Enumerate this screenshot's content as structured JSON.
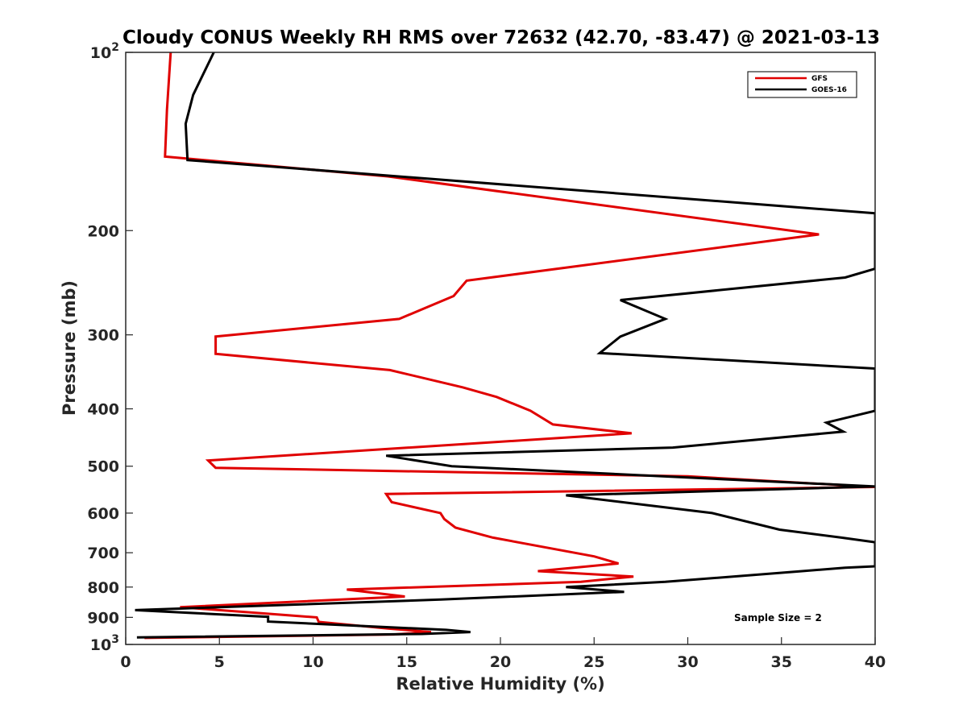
{
  "chart_data": {
    "type": "line",
    "title": "Cloudy CONUS Weekly RH RMS over 72632 (42.70, -83.47) @ 2021-03-13",
    "xlabel": "Relative Humidity (%)",
    "ylabel": "Pressure (mb)",
    "xlim": [
      0,
      40
    ],
    "ylim": [
      100,
      1000
    ],
    "yscale": "log",
    "y_reversed": true,
    "x_ticks": [
      "0",
      "5",
      "10",
      "15",
      "20",
      "25",
      "30",
      "35",
      "40"
    ],
    "y_ticks": [
      {
        "value": 100,
        "base": "10",
        "exp": "2"
      },
      {
        "value": 200,
        "label": "200"
      },
      {
        "value": 300,
        "label": "300"
      },
      {
        "value": 400,
        "label": "400"
      },
      {
        "value": 500,
        "label": "500"
      },
      {
        "value": 600,
        "label": "600"
      },
      {
        "value": 700,
        "label": "700"
      },
      {
        "value": 800,
        "label": "800"
      },
      {
        "value": 900,
        "label": "900"
      },
      {
        "value": 1000,
        "base": "10",
        "exp": "3"
      }
    ],
    "legend_position": "top-right",
    "grid": false,
    "annotation": "Sample Size = 2",
    "series": [
      {
        "name": "GFS",
        "color": "#e00000",
        "points": [
          [
            2.4,
            100
          ],
          [
            2.2,
            125
          ],
          [
            2.1,
            150
          ],
          [
            14,
            162
          ],
          [
            37,
            203
          ],
          [
            18.2,
            243
          ],
          [
            17.5,
            258
          ],
          [
            14.6,
            282
          ],
          [
            4.8,
            302
          ],
          [
            4.8,
            323
          ],
          [
            14.1,
            344
          ],
          [
            18,
            368
          ],
          [
            19.8,
            382
          ],
          [
            21.6,
            403
          ],
          [
            22.8,
            425
          ],
          [
            27,
            440
          ],
          [
            4.4,
            489
          ],
          [
            4.8,
            503
          ],
          [
            30,
            520
          ],
          [
            40,
            542
          ],
          [
            13.9,
            557
          ],
          [
            14.2,
            575
          ],
          [
            16.8,
            600
          ],
          [
            17,
            614
          ],
          [
            17.6,
            635
          ],
          [
            19.6,
            660
          ],
          [
            25,
            710
          ],
          [
            26.3,
            730
          ],
          [
            22,
            752
          ],
          [
            27.1,
            768
          ],
          [
            24.3,
            784
          ],
          [
            11.8,
            808
          ],
          [
            14.9,
            830
          ],
          [
            2.9,
            865
          ],
          [
            10.2,
            900
          ],
          [
            10.3,
            916
          ],
          [
            14,
            940
          ],
          [
            16.3,
            953
          ],
          [
            14.3,
            962
          ],
          [
            1,
            975
          ]
        ]
      },
      {
        "name": "GOES-16",
        "color": "#000000",
        "points": [
          [
            4.7,
            100
          ],
          [
            3.6,
            118
          ],
          [
            3.2,
            132
          ],
          [
            3.3,
            152
          ],
          [
            40,
            187
          ],
          [
            40,
            232
          ],
          [
            38.4,
            240
          ],
          [
            26.4,
            262
          ],
          [
            28.8,
            282
          ],
          [
            26.4,
            302
          ],
          [
            25.3,
            322
          ],
          [
            40,
            342
          ],
          [
            40,
            403
          ],
          [
            37.4,
            422
          ],
          [
            38.3,
            437
          ],
          [
            29.2,
            465
          ],
          [
            13.9,
            480
          ],
          [
            17.4,
            500
          ],
          [
            40,
            541
          ],
          [
            23.5,
            560
          ],
          [
            31.3,
            600
          ],
          [
            34.9,
            640
          ],
          [
            38.2,
            660
          ],
          [
            40,
            672
          ],
          [
            40,
            738
          ],
          [
            38.4,
            742
          ],
          [
            35.9,
            753
          ],
          [
            28.8,
            784
          ],
          [
            23.5,
            800
          ],
          [
            26.6,
            815
          ],
          [
            16.8,
            840
          ],
          [
            0.5,
            875
          ],
          [
            7.6,
            898
          ],
          [
            7.6,
            915
          ],
          [
            17.1,
            945
          ],
          [
            18.4,
            953
          ],
          [
            15.8,
            960
          ],
          [
            0.6,
            973
          ]
        ]
      }
    ]
  }
}
